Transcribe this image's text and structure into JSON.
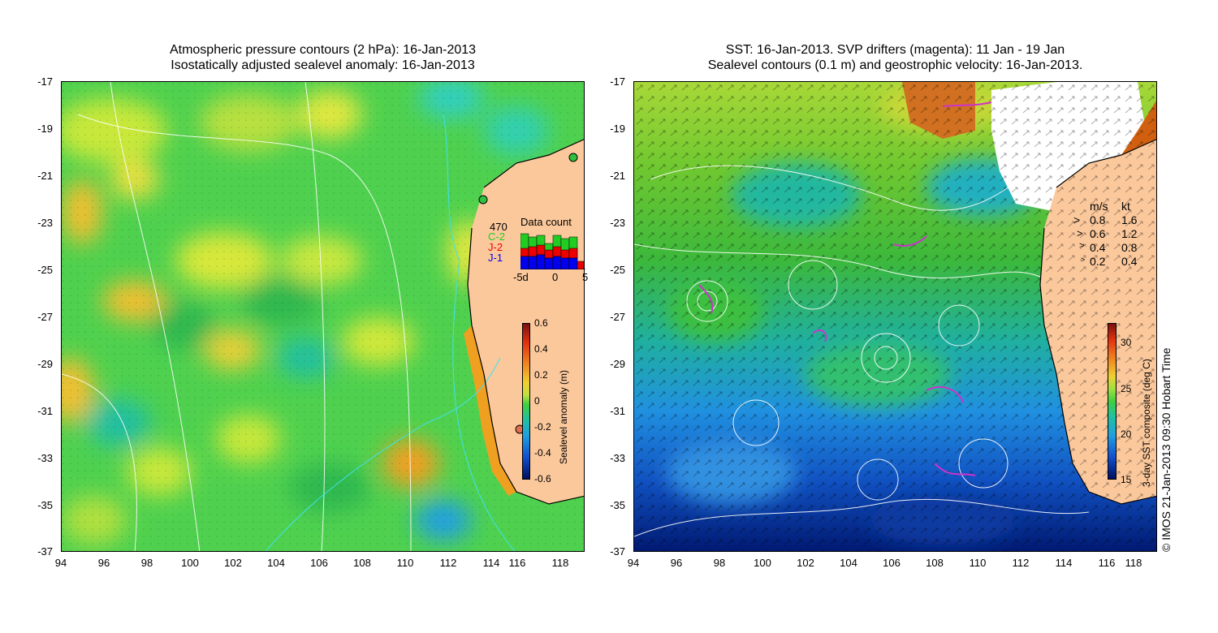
{
  "left_panel": {
    "title_line1": "Atmospheric pressure contours (2 hPa): 16-Jan-2013",
    "title_line2": "Isostatically adjusted sealevel anomaly: 16-Jan-2013",
    "y_ticks": [
      "-17",
      "-19",
      "-21",
      "-23",
      "-25",
      "-27",
      "-29",
      "-31",
      "-33",
      "-35",
      "-37"
    ],
    "x_ticks": [
      "94",
      "96",
      "98",
      "100",
      "102",
      "104",
      "106",
      "108",
      "110",
      "112",
      "114",
      "116",
      "118"
    ],
    "colorbar": {
      "label": "Sealevel anomaly (m)",
      "ticks": [
        "0.6",
        "0.4",
        "0.2",
        "0",
        "-0.2",
        "-0.4",
        "-0.6"
      ],
      "range": [
        -0.6,
        0.6
      ]
    },
    "data_count": {
      "title": "Data count",
      "total": "470",
      "series": [
        {
          "name": "C-2",
          "color": "#22cc22"
        },
        {
          "name": "J-2",
          "color": "#ee0000"
        },
        {
          "name": "J-1",
          "color": "#0000ee"
        }
      ],
      "x_ticks": [
        "-5d",
        "0",
        "5"
      ]
    }
  },
  "right_panel": {
    "title_line1": "SST: 16-Jan-2013. SVP drifters (magenta): 11 Jan - 19 Jan",
    "title_line2": "Sealevel contours (0.1 m) and geostrophic velocity: 16-Jan-2013.",
    "y_ticks": [
      "-17",
      "-19",
      "-21",
      "-23",
      "-25",
      "-27",
      "-29",
      "-31",
      "-33",
      "-35",
      "-37"
    ],
    "x_ticks": [
      "94",
      "96",
      "98",
      "100",
      "102",
      "104",
      "106",
      "108",
      "110",
      "112",
      "114",
      "116",
      "118"
    ],
    "velocity_legend": {
      "header_ms": "m/s",
      "header_kt": "kt",
      "rows": [
        {
          "ms": "0.8",
          "kt": "1.6"
        },
        {
          "ms": "0.6",
          "kt": "1.2"
        },
        {
          "ms": "0.4",
          "kt": "0.8"
        },
        {
          "ms": "0.2",
          "kt": "0.4"
        }
      ]
    },
    "colorbar": {
      "label": "3-day SST composite (deg C)",
      "ticks": [
        "30",
        "25",
        "20",
        "15"
      ],
      "range": [
        15,
        32
      ]
    }
  },
  "copyright": "© IMOS 21-Jan-2013 09:30 Hobart Time"
}
